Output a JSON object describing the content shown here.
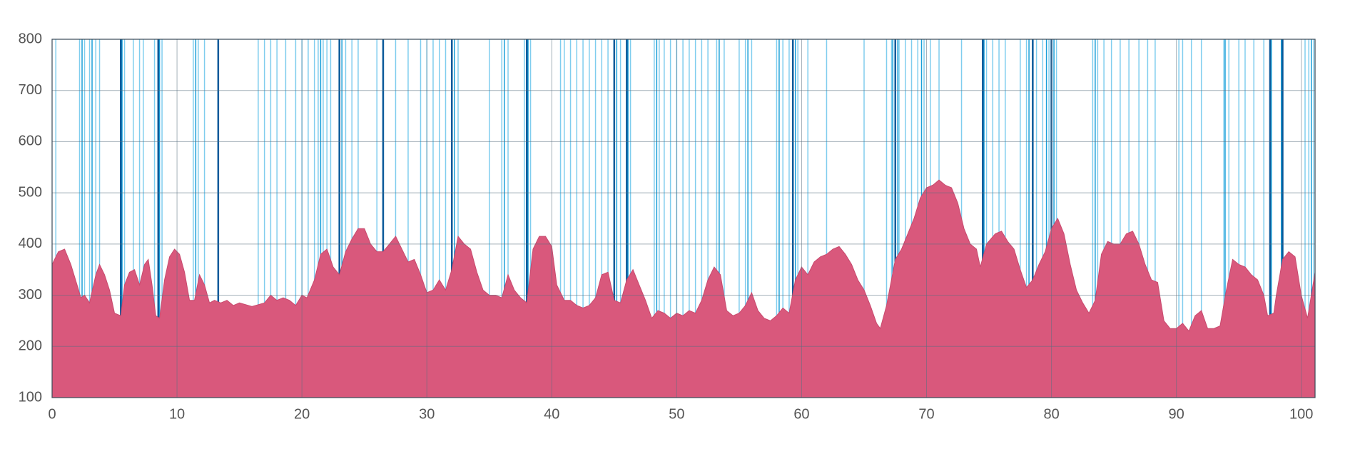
{
  "chart_data": {
    "type": "area",
    "color": "#d9587c",
    "x": [
      0,
      0.5,
      1,
      1.5,
      2,
      2.3,
      2.6,
      3,
      3.5,
      3.8,
      4.2,
      4.6,
      5,
      5.5,
      5.8,
      6.2,
      6.6,
      7,
      7.4,
      7.7,
      8,
      8.3,
      8.6,
      9,
      9.4,
      9.8,
      10.2,
      10.6,
      11,
      11.4,
      11.8,
      12.2,
      12.6,
      13,
      13.5,
      14,
      14.5,
      15,
      16,
      17,
      17.5,
      18,
      18.5,
      19,
      19.5,
      20,
      20.4,
      21,
      21.5,
      22,
      22.5,
      23,
      23.5,
      24,
      24.5,
      25,
      25.5,
      26,
      26.5,
      27,
      27.5,
      28,
      28.5,
      29,
      29.5,
      30,
      30.5,
      31,
      31.5,
      32,
      32.5,
      33,
      33.5,
      34,
      34.5,
      35,
      35.5,
      36,
      36.5,
      37,
      37.5,
      38,
      38.5,
      39,
      39.5,
      40,
      40.4,
      41,
      41.5,
      42,
      42.5,
      43,
      43.5,
      44,
      44.5,
      45,
      45.5,
      46,
      46.5,
      47,
      47.5,
      48,
      48.5,
      49,
      49.5,
      50,
      50.5,
      51,
      51.5,
      52,
      52.5,
      53,
      53.5,
      54,
      54.5,
      55,
      55.5,
      56,
      56.5,
      57,
      57.5,
      58,
      58.5,
      59,
      59.5,
      60,
      60.5,
      61,
      61.5,
      62,
      62.5,
      63,
      63.5,
      64,
      64.5,
      65,
      65.5,
      66,
      66.3,
      66.8,
      67.5,
      68,
      68.5,
      69,
      69.5,
      70,
      70.5,
      71,
      71.5,
      72,
      72.5,
      73,
      73.5,
      74,
      74.3,
      74.8,
      75.5,
      76,
      76.5,
      77,
      77.5,
      78,
      78.5,
      79,
      79.5,
      80,
      80.5,
      81,
      81.5,
      82,
      82.5,
      83,
      83.5,
      84,
      84.5,
      85,
      85.5,
      86,
      86.5,
      87,
      87.5,
      88,
      88.5,
      89,
      89.5,
      90,
      90.5,
      91,
      91.5,
      92,
      92.5,
      93,
      93.5,
      94,
      94.5,
      95,
      95.5,
      96,
      96.5,
      97,
      97.3,
      97.8,
      98,
      98.5,
      99,
      99.5,
      100,
      100.5,
      101.1
    ],
    "values": [
      360,
      385,
      390,
      360,
      320,
      295,
      300,
      285,
      340,
      360,
      340,
      310,
      265,
      260,
      320,
      345,
      350,
      320,
      360,
      370,
      320,
      260,
      255,
      330,
      375,
      390,
      380,
      345,
      290,
      290,
      340,
      320,
      285,
      290,
      285,
      290,
      280,
      285,
      278,
      285,
      300,
      290,
      295,
      290,
      280,
      300,
      295,
      330,
      380,
      390,
      355,
      340,
      385,
      410,
      430,
      430,
      400,
      385,
      385,
      400,
      415,
      390,
      365,
      370,
      340,
      305,
      310,
      330,
      310,
      350,
      415,
      400,
      390,
      345,
      310,
      300,
      300,
      295,
      340,
      310,
      295,
      285,
      390,
      415,
      415,
      395,
      320,
      290,
      290,
      280,
      275,
      280,
      295,
      340,
      345,
      290,
      285,
      330,
      350,
      320,
      290,
      255,
      270,
      265,
      255,
      265,
      260,
      270,
      265,
      290,
      330,
      355,
      340,
      270,
      260,
      265,
      280,
      305,
      270,
      255,
      250,
      260,
      275,
      265,
      330,
      355,
      340,
      365,
      375,
      380,
      390,
      395,
      380,
      360,
      330,
      310,
      280,
      245,
      235,
      280,
      370,
      390,
      420,
      450,
      490,
      510,
      515,
      525,
      515,
      510,
      480,
      430,
      400,
      390,
      355,
      400,
      420,
      425,
      405,
      390,
      350,
      315,
      330,
      360,
      385,
      430,
      450,
      420,
      360,
      310,
      285,
      265,
      290,
      380,
      405,
      400,
      400,
      420,
      425,
      400,
      360,
      330,
      325,
      250,
      235,
      235,
      245,
      230,
      260,
      270,
      235,
      235,
      240,
      310,
      370,
      360,
      355,
      340,
      330,
      300,
      260,
      265,
      300,
      370,
      385,
      375,
      300,
      255,
      345
    ],
    "markers": [
      {
        "color": "#7fcdee",
        "x": [
          0.3,
          2.2,
          2.6,
          3,
          3.5,
          3.8,
          5.8,
          6.5,
          7,
          7.3,
          8.2,
          8.8,
          11.3,
          11.7,
          12.2,
          16.5,
          17,
          17.5,
          18,
          18.7,
          19.5,
          20,
          20.5,
          21,
          21.3,
          21.7,
          22,
          22.3,
          23.5,
          24,
          24.5,
          26,
          27.5,
          28.5,
          29.5,
          30,
          30.5,
          31,
          31.5,
          32.5,
          35,
          36,
          36.5,
          37.8,
          38.3,
          40.7,
          41,
          41.5,
          42,
          42.5,
          43,
          43.5,
          44,
          44.5,
          45.5,
          46.3,
          48.2,
          48.6,
          49,
          49.5,
          50,
          50.5,
          51,
          51.5,
          52,
          52.5,
          53.2,
          53.8,
          55,
          55.5,
          56,
          58,
          58.5,
          59,
          59.7,
          60.5,
          62,
          65,
          66.8,
          67.2,
          67.8,
          68.3,
          68.8,
          69.3,
          69.8,
          70.3,
          71,
          72.8,
          74.8,
          75.3,
          75.8,
          76.3,
          77.5,
          78,
          78.8,
          79.3,
          79.8,
          80.4,
          83.3,
          83.7,
          84.2,
          84.8,
          85.5,
          86.2,
          87,
          87.7,
          88.3,
          90.2,
          90.5,
          91.2,
          92,
          93.8,
          94.2,
          95,
          95.5,
          96.2,
          97,
          100.3,
          100.6,
          101
        ]
      },
      {
        "color": "#1a9fd8",
        "x": [
          2.4,
          3.2,
          5.6,
          8.6,
          11.5,
          21.5,
          23.2,
          32.2,
          36.2,
          38.1,
          45.2,
          46.1,
          48.4,
          53.4,
          55.7,
          58.2,
          59.5,
          67.3,
          67.7,
          69.6,
          74.6,
          78.2,
          79.6,
          80.2,
          83.5,
          93.9,
          97.6,
          98.4,
          100.8
        ]
      },
      {
        "color": "#0b5a9a",
        "x": [
          5.5,
          8.5,
          13.3,
          23,
          26.5,
          32,
          38,
          45,
          46,
          59.3,
          67.5,
          74.5,
          78.5,
          80,
          97.5,
          98.5
        ]
      }
    ],
    "xlim": [
      0,
      101.1
    ],
    "xticks": [
      0,
      10,
      20,
      30,
      40,
      50,
      60,
      70,
      80,
      90,
      100
    ],
    "ylim": [
      100,
      800
    ],
    "yticks": [
      100,
      200,
      300,
      400,
      500,
      600,
      700,
      800
    ],
    "grid": true
  }
}
